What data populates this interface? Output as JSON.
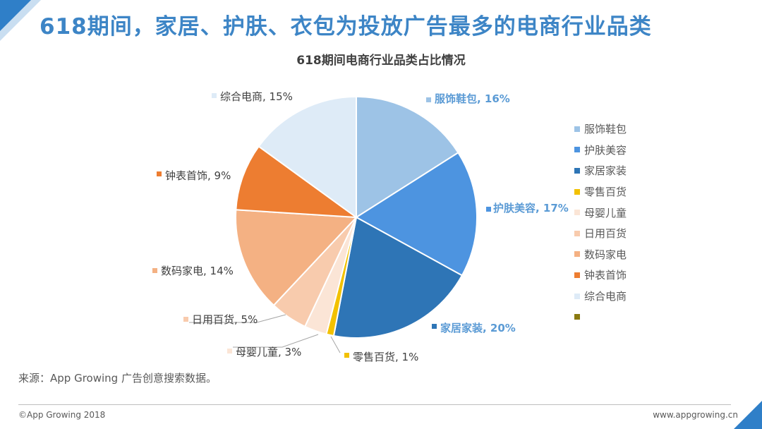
{
  "page_title": "618期间，家居、护肤、衣包为投放广告最多的电商行业品类",
  "source_note": "来源：App Growing 广告创意搜索数据。",
  "footer": {
    "copyright": "©App Growing 2018",
    "website": "www.appgrowing.cn"
  },
  "colors": {
    "brand_blue": "#3d85c6",
    "accent_blue": "#2f7fc8"
  },
  "chart_data": {
    "type": "pie",
    "title": "618期间电商行业品类占比情况",
    "legend_position": "right",
    "slices": [
      {
        "name": "服饰鞋包",
        "value": 16,
        "label": "服饰鞋包, 16%",
        "color": "#9dc3e6",
        "label_color": "#5b9bd5",
        "label_bold": true
      },
      {
        "name": "护肤美容",
        "value": 17,
        "label": "护肤美容, 17%",
        "color": "#4d94e0",
        "label_color": "#5b9bd5",
        "label_bold": true
      },
      {
        "name": "家居家装",
        "value": 20,
        "label": "家居家装, 20%",
        "color": "#2e75b6",
        "label_color": "#5b9bd5",
        "label_bold": true
      },
      {
        "name": "零售百货",
        "value": 1,
        "label": "零售百货, 1%",
        "color": "#f2c100",
        "label_color": "#404040",
        "label_bold": false
      },
      {
        "name": "母婴儿童",
        "value": 3,
        "label": "母婴儿童, 3%",
        "color": "#fbe5d6",
        "label_color": "#404040",
        "label_bold": false
      },
      {
        "name": "日用百货",
        "value": 5,
        "label": "日用百货, 5%",
        "color": "#f8cbad",
        "label_color": "#404040",
        "label_bold": false
      },
      {
        "name": "数码家电",
        "value": 14,
        "label": "数码家电, 14%",
        "color": "#f4b183",
        "label_color": "#404040",
        "label_bold": false
      },
      {
        "name": "钟表首饰",
        "value": 9,
        "label": "钟表首饰, 9%",
        "color": "#ed7d31",
        "label_color": "#404040",
        "label_bold": false
      },
      {
        "name": "综合电商",
        "value": 15,
        "label": "综合电商, 15%",
        "color": "#deebf7",
        "label_color": "#404040",
        "label_bold": false
      }
    ],
    "legend": [
      {
        "name": "服饰鞋包",
        "color": "#9dc3e6"
      },
      {
        "name": "护肤美容",
        "color": "#4d94e0"
      },
      {
        "name": "家居家装",
        "color": "#2e75b6"
      },
      {
        "name": "零售百货",
        "color": "#f2c100"
      },
      {
        "name": "母婴儿童",
        "color": "#fbe5d6"
      },
      {
        "name": "日用百货",
        "color": "#f8cbad"
      },
      {
        "name": "数码家电",
        "color": "#f4b183"
      },
      {
        "name": "钟表首饰",
        "color": "#ed7d31"
      },
      {
        "name": "综合电商",
        "color": "#deebf7"
      },
      {
        "name": "",
        "color": "#8a7a10"
      }
    ]
  }
}
